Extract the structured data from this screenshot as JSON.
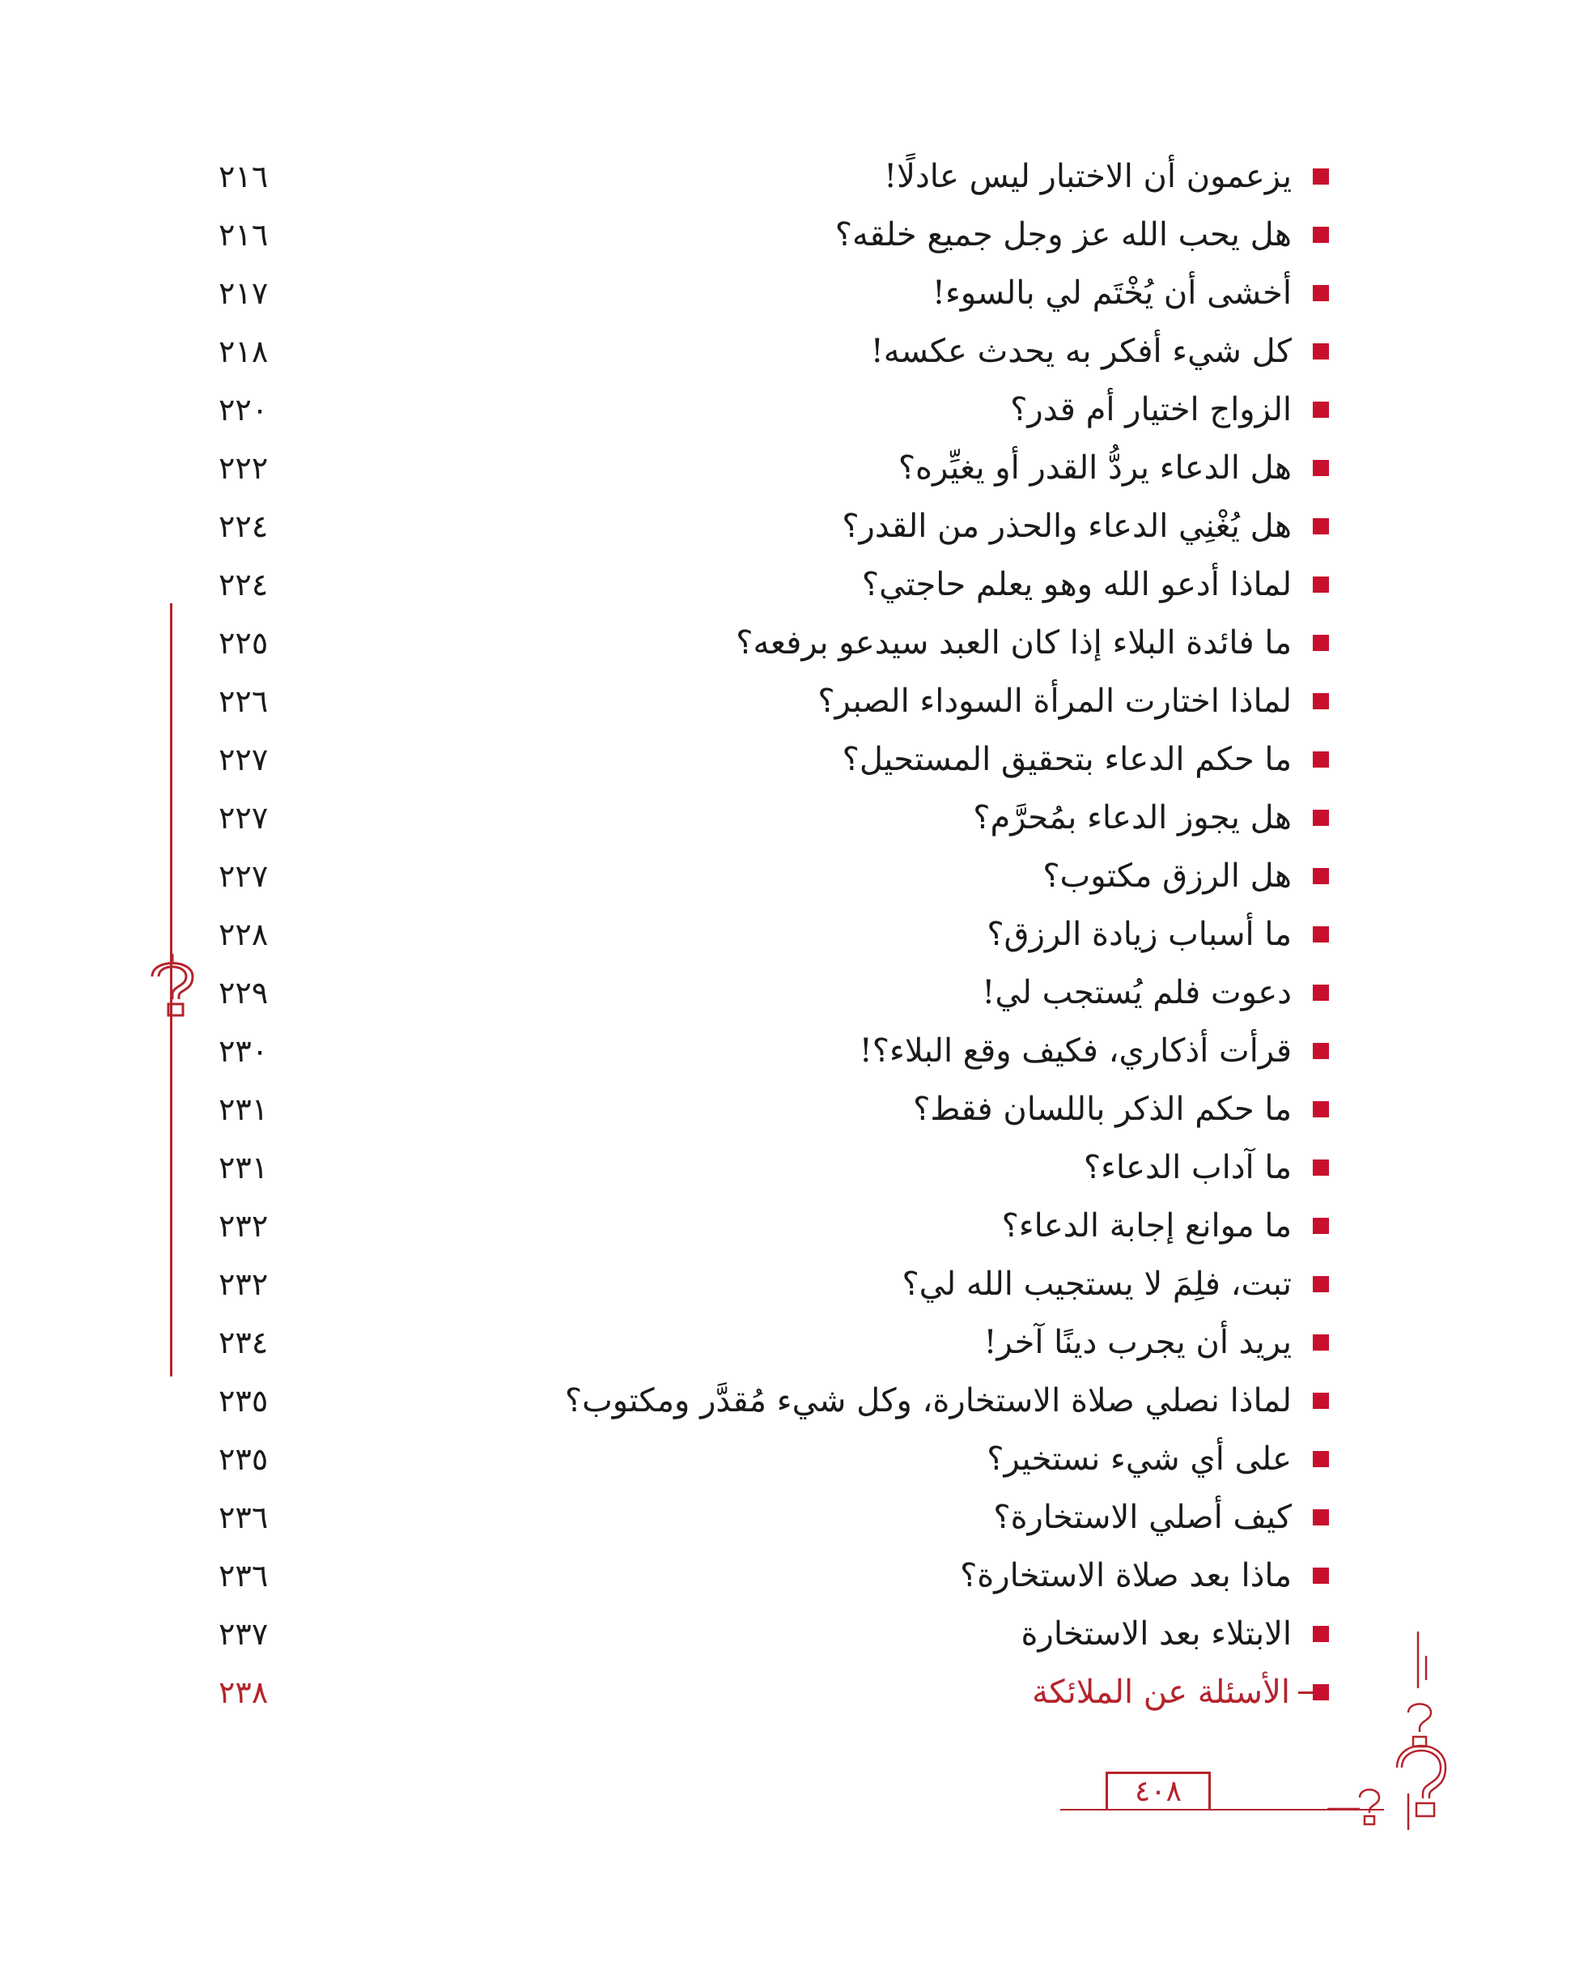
{
  "toc": {
    "items": [
      {
        "title": "يزعمون أن الاختبار ليس عادلًا!",
        "page": "٢١٦"
      },
      {
        "title": "هل يحب الله عز وجل جميع خلقه؟",
        "page": "٢١٦"
      },
      {
        "title": "أخشى أن يُخْتَم لي بالسوء!",
        "page": "٢١٧"
      },
      {
        "title": "كل شيء أفكر به يحدث عكسه!",
        "page": "٢١٨"
      },
      {
        "title": "الزواج اختيار أم قدر؟",
        "page": "٢٢٠"
      },
      {
        "title": "هل الدعاء يردُّ القدر أو يغيِّره؟",
        "page": "٢٢٢"
      },
      {
        "title": "هل يُغْنِي الدعاء والحذر من القدر؟",
        "page": "٢٢٤"
      },
      {
        "title": "لماذا أدعو الله وهو يعلم حاجتي؟",
        "page": "٢٢٤"
      },
      {
        "title": "ما فائدة البلاء إذا كان العبد سيدعو برفعه؟",
        "page": "٢٢٥"
      },
      {
        "title": "لماذا اختارت المرأة السوداء الصبر؟",
        "page": "٢٢٦"
      },
      {
        "title": "ما حكم الدعاء بتحقيق المستحيل؟",
        "page": "٢٢٧"
      },
      {
        "title": "هل يجوز الدعاء بمُحرَّم؟",
        "page": "٢٢٧"
      },
      {
        "title": "هل الرزق مكتوب؟",
        "page": "٢٢٧"
      },
      {
        "title": "ما أسباب زيادة الرزق؟",
        "page": "٢٢٨"
      },
      {
        "title": "دعوت فلم يُستجب لي!",
        "page": "٢٢٩"
      },
      {
        "title": "قرأت أذكاري، فكيف وقع البلاء؟!",
        "page": "٢٣٠"
      },
      {
        "title": "ما حكم الذكر باللسان فقط؟",
        "page": "٢٣١"
      },
      {
        "title": "ما آداب الدعاء؟",
        "page": "٢٣١"
      },
      {
        "title": "ما موانع إجابة الدعاء؟",
        "page": "٢٣٢"
      },
      {
        "title": "تبت، فلِمَ لا يستجيب الله لي؟",
        "page": "٢٣٢"
      },
      {
        "title": "يريد أن يجرب دينًا آخر!",
        "page": "٢٣٤"
      },
      {
        "title": "لماذا نصلي صلاة الاستخارة، وكل شيء مُقدَّر ومكتوب؟",
        "page": "٢٣٥"
      },
      {
        "title": "على أي شيء نستخير؟",
        "page": "٢٣٥"
      },
      {
        "title": "كيف أصلي الاستخارة؟",
        "page": "٢٣٦"
      },
      {
        "title": "ماذا بعد صلاة الاستخارة؟",
        "page": "٢٣٦"
      },
      {
        "title": "الابتلاء بعد الاستخارة",
        "page": "٢٣٧"
      }
    ],
    "section": {
      "title": "الأسئلة عن الملائكة",
      "page": "٢٣٨"
    }
  },
  "footer": {
    "page_number": "٤٠٨"
  },
  "colors": {
    "accent": "#b5242c",
    "bullet": "#c8102e",
    "text": "#1a1a1a"
  }
}
